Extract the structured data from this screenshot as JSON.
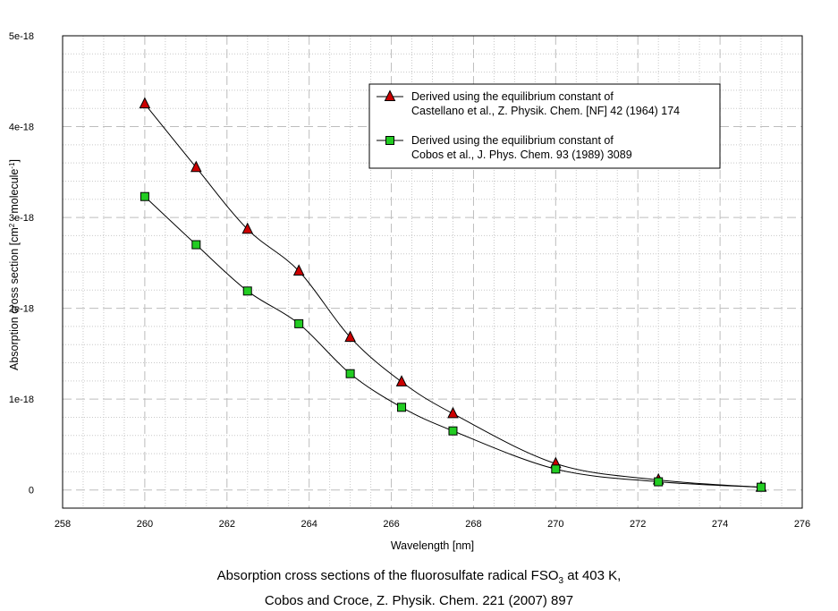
{
  "chart_data": {
    "type": "line",
    "xlabel": "Wavelength [nm]",
    "ylabel": {
      "prefix": "Absorption cross section [cm",
      "sup1": "2",
      "middle": " · molecule",
      "sup2": "-1",
      "suffix": "]"
    },
    "xlim": [
      258,
      276
    ],
    "ylim": [
      -2e-19,
      5e-18
    ],
    "x_ticks": [
      258,
      260,
      262,
      264,
      266,
      268,
      270,
      272,
      274,
      276
    ],
    "y_ticks": [
      {
        "value": 0,
        "label": "0"
      },
      {
        "value": 1e-18,
        "label": "1e-18"
      },
      {
        "value": 2e-18,
        "label": "2e-18"
      },
      {
        "value": 3e-18,
        "label": "3e-18"
      },
      {
        "value": 4e-18,
        "label": "4e-18"
      },
      {
        "value": 5e-18,
        "label": "5e-18"
      }
    ],
    "grid": true,
    "legend_position": "top-right",
    "series": [
      {
        "name_line1": "Derived using the equilibrium constant of",
        "name_line2": "Castellano et al., Z. Physik. Chem. [NF] 42 (1964) 174",
        "marker": "triangle",
        "color": "#cc0000",
        "x": [
          260,
          261.25,
          262.5,
          263.75,
          265,
          266.25,
          267.5,
          270,
          272.5,
          275
        ],
        "y": [
          4.25e-18,
          3.55e-18,
          2.87e-18,
          2.41e-18,
          1.68e-18,
          1.19e-18,
          8.4e-19,
          2.9e-19,
          1.1e-19,
          3e-20
        ]
      },
      {
        "name_line1": "Derived using the equilibrium constant of",
        "name_line2": "Cobos et al., J. Phys. Chem. 93 (1989) 3089",
        "marker": "square",
        "color": "#22cc22",
        "x": [
          260,
          261.25,
          262.5,
          263.75,
          265,
          266.25,
          267.5,
          270,
          272.5,
          275
        ],
        "y": [
          3.23e-18,
          2.7e-18,
          2.19e-18,
          1.83e-18,
          1.28e-18,
          9.1e-19,
          6.5e-19,
          2.3e-19,
          9e-20,
          3e-20
        ]
      }
    ]
  },
  "caption": {
    "line1_before": "Absorption cross sections of the fluorosulfate radical FSO",
    "line1_sub": "3",
    "line1_after": " at 403 K,",
    "line2": "Cobos and Croce, Z. Physik. Chem. 221 (2007) 897"
  }
}
